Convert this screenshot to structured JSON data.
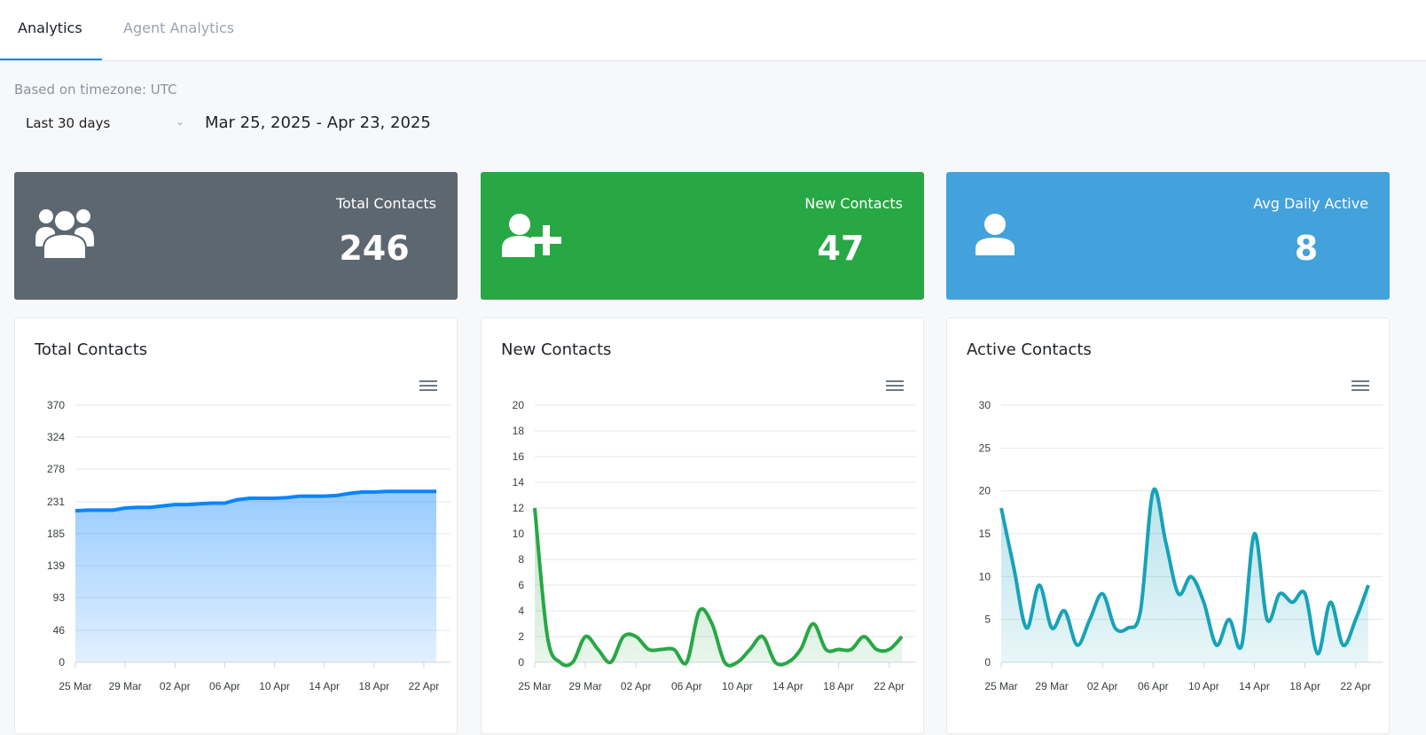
{
  "tabs": [
    {
      "label": "Analytics",
      "active": true
    },
    {
      "label": "Agent Analytics",
      "active": false
    }
  ],
  "timezone_label": "Based on timezone: UTC",
  "range_select": {
    "value": "Last 30 days",
    "icon": "chevron-down-icon"
  },
  "date_range": "Mar 25, 2025 - Apr 23, 2025",
  "stats": [
    {
      "title": "Total Contacts",
      "value": "246",
      "icon": "users-group-icon",
      "color": "#5c6770"
    },
    {
      "title": "New Contacts",
      "value": "47",
      "icon": "user-plus-icon",
      "color": "#28a745"
    },
    {
      "title": "Avg Daily Active",
      "value": "8",
      "icon": "user-icon",
      "color": "#43a1dc"
    }
  ],
  "chart_data": [
    {
      "type": "area",
      "title": "Total Contacts",
      "color": "#0a84ff",
      "ylim": [
        0,
        370
      ],
      "y_ticks": [
        "0",
        "46",
        "93",
        "139",
        "185",
        "231",
        "278",
        "324",
        "370"
      ],
      "x_ticks": [
        "25 Mar",
        "29 Mar",
        "02 Apr",
        "06 Apr",
        "10 Apr",
        "14 Apr",
        "18 Apr",
        "22 Apr"
      ],
      "x_range": [
        "25 Mar",
        "23 Apr"
      ],
      "grid": true,
      "values": [
        218,
        219,
        219,
        219,
        222,
        223,
        223,
        225,
        227,
        227,
        228,
        229,
        229,
        234,
        236,
        236,
        236,
        237,
        239,
        239,
        239,
        240,
        243,
        245,
        245,
        246,
        246,
        246,
        246,
        246
      ]
    },
    {
      "type": "area",
      "title": "New Contacts",
      "color": "#28a745",
      "ylim": [
        0,
        20
      ],
      "y_ticks": [
        "0",
        "2",
        "4",
        "6",
        "8",
        "10",
        "12",
        "14",
        "16",
        "18",
        "20"
      ],
      "x_ticks": [
        "25 Mar",
        "29 Mar",
        "02 Apr",
        "06 Apr",
        "10 Apr",
        "14 Apr",
        "18 Apr",
        "22 Apr"
      ],
      "x_range": [
        "25 Mar",
        "23 Apr"
      ],
      "grid": true,
      "values": [
        12,
        2,
        0,
        0,
        2,
        1,
        0,
        2,
        2,
        1,
        1,
        1,
        0,
        4,
        3,
        0,
        0,
        1,
        2,
        0,
        0,
        1,
        3,
        1,
        1,
        1,
        2,
        1,
        1,
        2
      ]
    },
    {
      "type": "area",
      "title": "Active Contacts",
      "color": "#17a2b8",
      "ylim": [
        0,
        30
      ],
      "y_ticks": [
        "0",
        "5",
        "10",
        "15",
        "20",
        "25",
        "30"
      ],
      "x_ticks": [
        "25 Mar",
        "29 Mar",
        "02 Apr",
        "06 Apr",
        "10 Apr",
        "14 Apr",
        "18 Apr",
        "22 Apr"
      ],
      "x_range": [
        "25 Mar",
        "23 Apr"
      ],
      "grid": true,
      "values": [
        18,
        11,
        4,
        9,
        4,
        6,
        2,
        5,
        8,
        4,
        4,
        6,
        20,
        14,
        8,
        10,
        7,
        2,
        5,
        2,
        15,
        5,
        8,
        7,
        8,
        1,
        7,
        2,
        5,
        9
      ]
    }
  ]
}
